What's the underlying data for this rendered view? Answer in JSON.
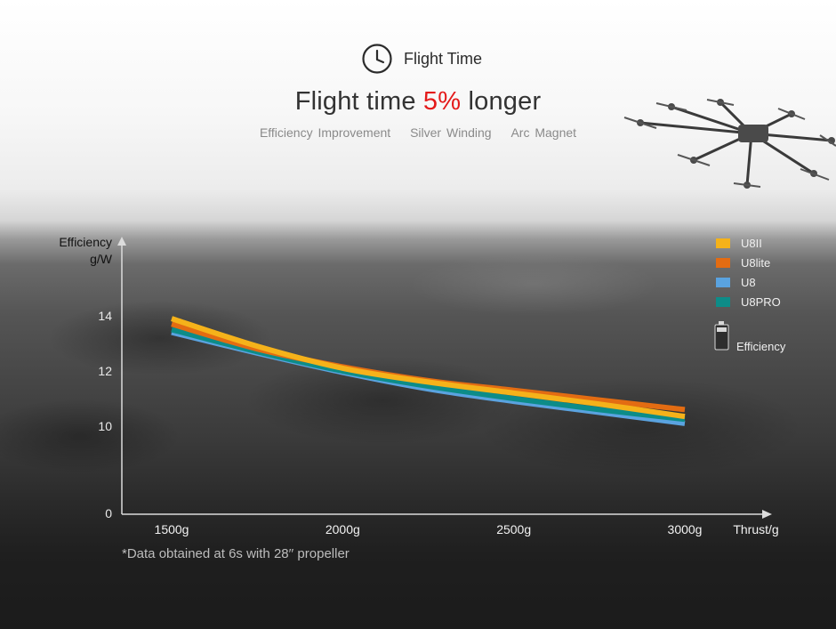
{
  "header": {
    "section_title": "Flight Time",
    "section_icon": "clock-icon",
    "headline_prefix": "Flight time ",
    "headline_highlight": "5%",
    "headline_suffix": " longer",
    "highlight_color": "#e41b1b",
    "features": [
      "Efficiency Improvement",
      "Silver Winding",
      "Arc Magnet"
    ]
  },
  "footnote": "*Data obtained at 6s with 28′′ propeller",
  "chart_data": {
    "type": "line",
    "ylabel_line1": "Efficiency",
    "ylabel_line2": "g/W",
    "xlabel": "Thrust/g",
    "x": [
      1500,
      2000,
      2500,
      3000
    ],
    "xtick_labels": [
      "1500g",
      "2000g",
      "2500g",
      "3000g"
    ],
    "yticks": [
      0,
      10,
      12,
      14
    ],
    "ytick_labels": [
      "0",
      "10",
      "12",
      "14"
    ],
    "series": [
      {
        "name": "U8II",
        "color": "#f5b21a",
        "x": [
          1500,
          1750,
          2000,
          2250,
          2500,
          2750,
          3000
        ],
        "values": [
          13.9,
          12.9,
          12.1,
          11.6,
          11.2,
          10.8,
          10.35
        ]
      },
      {
        "name": "U8lite",
        "color": "#e36c12",
        "x": [
          1500,
          1750,
          2000,
          2250,
          2500,
          2750,
          3000
        ],
        "values": [
          13.7,
          12.8,
          12.15,
          11.65,
          11.3,
          10.95,
          10.6
        ]
      },
      {
        "name": "U8",
        "color": "#5aa3e0",
        "x": [
          1500,
          1750,
          2000,
          2250,
          2500,
          2750,
          3000
        ],
        "values": [
          13.4,
          12.65,
          11.95,
          11.35,
          10.9,
          10.5,
          10.1
        ]
      },
      {
        "name": "U8PRO",
        "color": "#0d8c88",
        "x": [
          1500,
          1750,
          2000,
          2250,
          2500,
          2750,
          3000
        ],
        "values": [
          13.5,
          12.7,
          12.0,
          11.45,
          11.0,
          10.6,
          10.25
        ]
      }
    ],
    "legend_extra": {
      "label": "Efficiency",
      "icon": "battery-icon"
    },
    "legend_position": "top-right",
    "grid": false
  }
}
